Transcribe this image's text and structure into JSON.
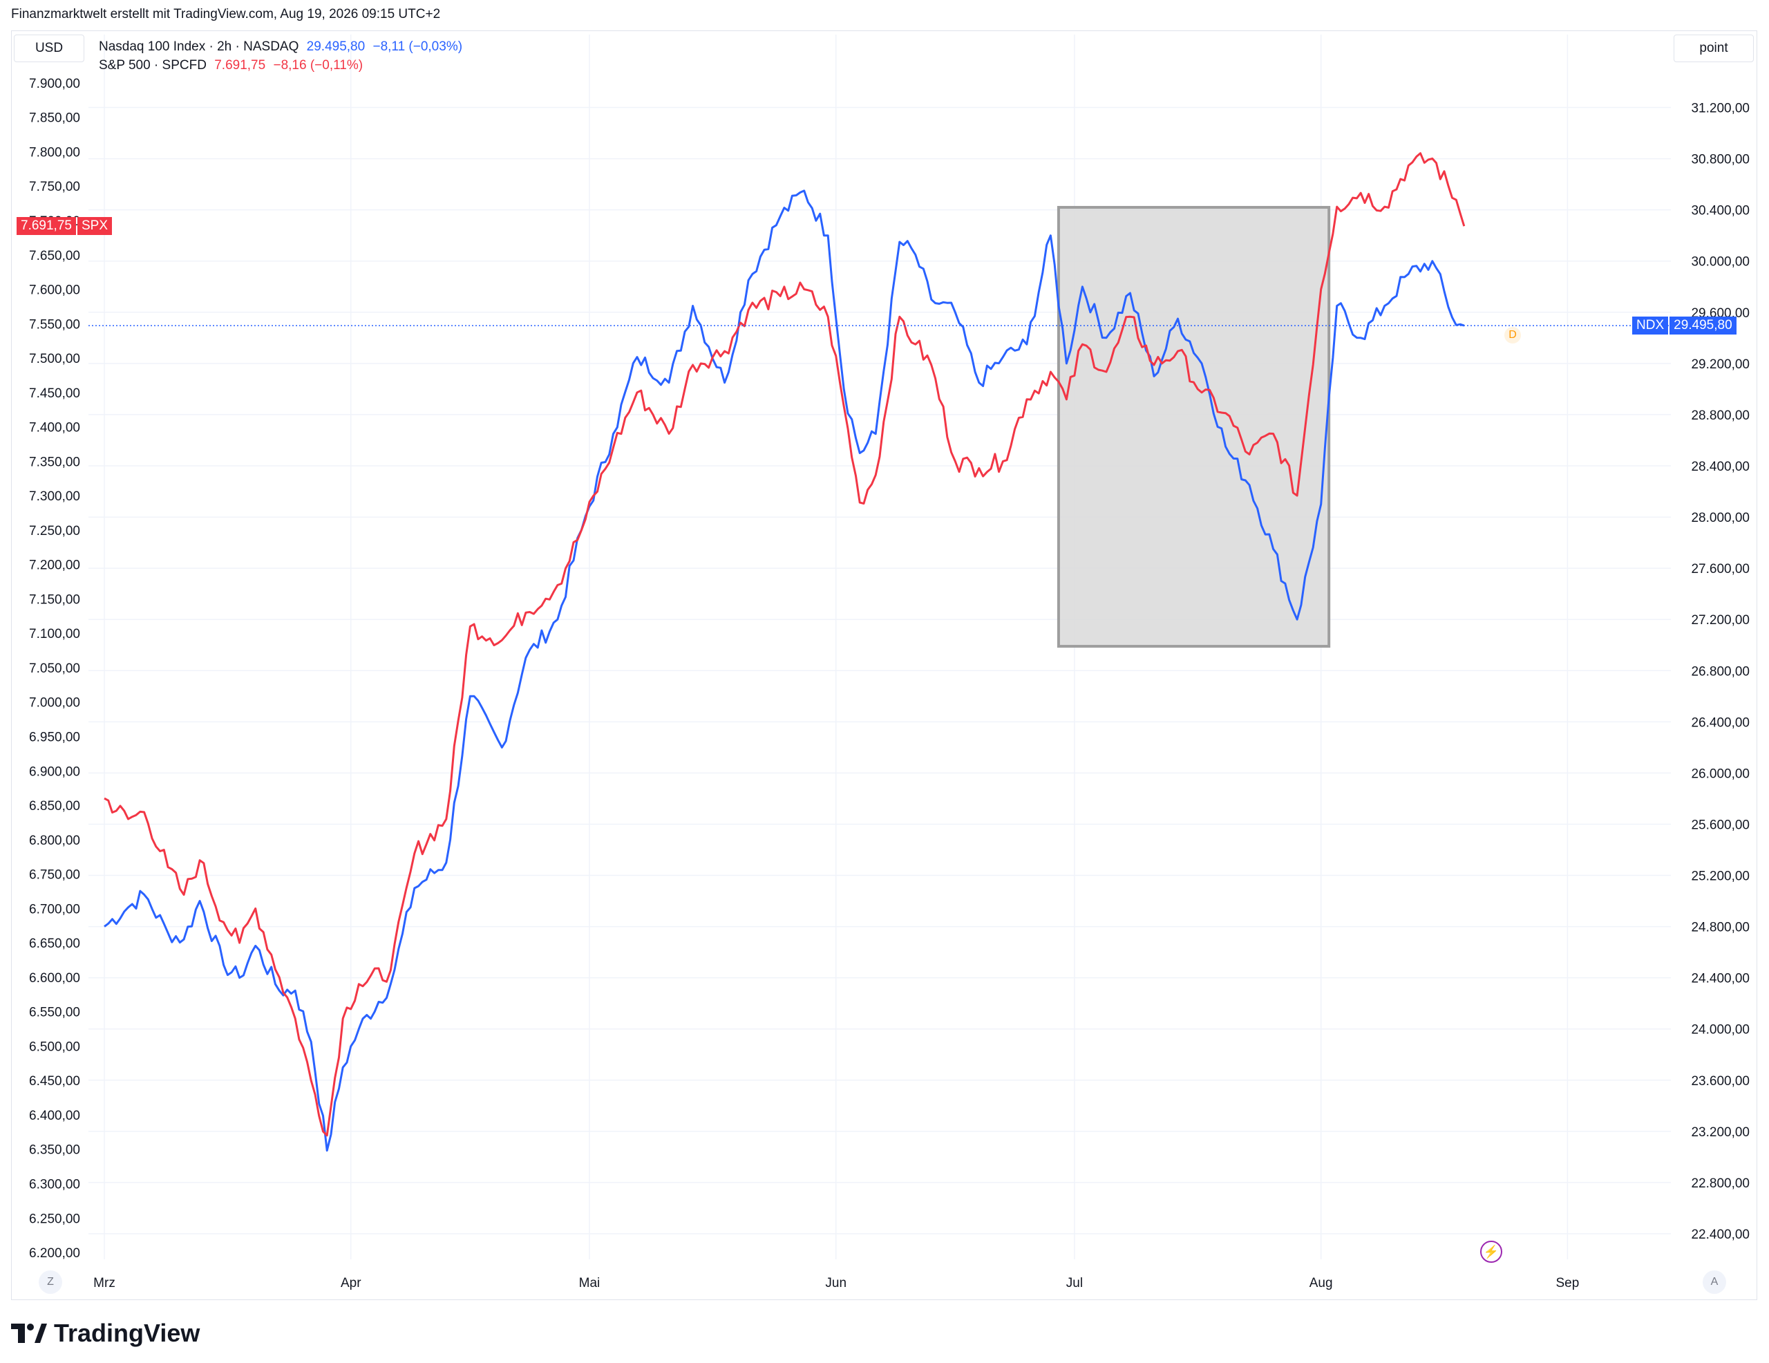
{
  "header": {
    "text": "Finanzmarktwelt erstellt mit TradingView.com, Aug 19, 2026 09:15 UTC+2"
  },
  "toolbar": {
    "currency_label": "USD",
    "unit_label": "point"
  },
  "legend": {
    "ndx": {
      "name": "Nasdaq 100 Index · 2h · NASDAQ",
      "value": "29.495,80",
      "change": "−8,11 (−0,03%)"
    },
    "spx": {
      "name": "S&P 500 · SPCFD",
      "value": "7.691,75",
      "change": "−8,16 (−0,11%)"
    }
  },
  "badges": {
    "spx": {
      "value": "7.691,75",
      "ticker": "SPX"
    },
    "ndx": {
      "value": "29.495,80",
      "ticker": "NDX"
    },
    "dividend_marker": "D"
  },
  "footer": {
    "logo_text": "TradingView",
    "left_button": "Z",
    "right_button": "A"
  },
  "colors": {
    "ndx": "#2962ff",
    "spx": "#f23645",
    "grid": "#f0f3fa",
    "highlight_fill": "#d9d9d9",
    "highlight_border": "#9e9e9e"
  },
  "chart_data": {
    "type": "line",
    "x_labels": [
      "Mrz",
      "Apr",
      "Mai",
      "Jun",
      "Jul",
      "Aug",
      "Sep"
    ],
    "left_axis": {
      "unit": "USD",
      "ylim": [
        6190,
        7920
      ],
      "ticks": [
        "7.900,00",
        "7.850,00",
        "7.800,00",
        "7.750,00",
        "7.700,00",
        "7.650,00",
        "7.600,00",
        "7.550,00",
        "7.500,00",
        "7.450,00",
        "7.400,00",
        "7.350,00",
        "7.300,00",
        "7.250,00",
        "7.200,00",
        "7.150,00",
        "7.100,00",
        "7.050,00",
        "7.000,00",
        "6.950,00",
        "6.900,00",
        "6.850,00",
        "6.800,00",
        "6.750,00",
        "6.700,00",
        "6.650,00",
        "6.600,00",
        "6.550,00",
        "6.500,00",
        "6.450,00",
        "6.400,00",
        "6.350,00",
        "6.300,00",
        "6.250,00",
        "6.200,00"
      ]
    },
    "right_axis": {
      "unit": "point",
      "ylim": [
        22200,
        31500
      ],
      "ticks": [
        "31.200,00",
        "30.800,00",
        "30.400,00",
        "30.000,00",
        "29.600,00",
        "29.200,00",
        "28.800,00",
        "28.400,00",
        "28.000,00",
        "27.600,00",
        "27.200,00",
        "26.800,00",
        "26.400,00",
        "26.000,00",
        "25.600,00",
        "25.200,00",
        "24.800,00",
        "24.400,00",
        "24.000,00",
        "23.600,00",
        "23.200,00",
        "22.800,00",
        "22.400,00"
      ]
    },
    "highlight_box": {
      "x_start": "2026-06-29",
      "x_end": "2026-08-02",
      "y_top": 30420,
      "y_bottom": 26990,
      "axis": "right"
    },
    "series": [
      {
        "name": "Nasdaq 100 Index",
        "axis": "right",
        "x": [
          "2026-03-01",
          "2026-03-04",
          "2026-03-06",
          "2026-03-09",
          "2026-03-11",
          "2026-03-13",
          "2026-03-16",
          "2026-03-18",
          "2026-03-20",
          "2026-03-23",
          "2026-03-25",
          "2026-03-27",
          "2026-03-29",
          "2026-03-31",
          "2026-04-02",
          "2026-04-06",
          "2026-04-09",
          "2026-04-13",
          "2026-04-16",
          "2026-04-20",
          "2026-04-23",
          "2026-04-27",
          "2026-04-30",
          "2026-05-04",
          "2026-05-07",
          "2026-05-11",
          "2026-05-14",
          "2026-05-18",
          "2026-05-21",
          "2026-05-25",
          "2026-05-28",
          "2026-05-31",
          "2026-06-02",
          "2026-06-04",
          "2026-06-06",
          "2026-06-09",
          "2026-06-11",
          "2026-06-13",
          "2026-06-16",
          "2026-06-19",
          "2026-06-22",
          "2026-06-25",
          "2026-06-28",
          "2026-06-30",
          "2026-07-02",
          "2026-07-05",
          "2026-07-08",
          "2026-07-11",
          "2026-07-14",
          "2026-07-17",
          "2026-07-20",
          "2026-07-23",
          "2026-07-26",
          "2026-07-29",
          "2026-08-01",
          "2026-08-03",
          "2026-08-06",
          "2026-08-09",
          "2026-08-12",
          "2026-08-15",
          "2026-08-18",
          "2026-08-19"
        ],
        "y": [
          24800,
          24950,
          25050,
          24750,
          24700,
          25000,
          24500,
          24400,
          24650,
          24300,
          24300,
          23900,
          23050,
          23700,
          24000,
          24350,
          25100,
          25300,
          26600,
          26200,
          26900,
          27200,
          27900,
          28650,
          29250,
          29050,
          29650,
          29050,
          29850,
          30350,
          30550,
          30200,
          29000,
          28500,
          28650,
          30150,
          30050,
          29700,
          29600,
          29050,
          29250,
          29350,
          30200,
          29200,
          29800,
          29400,
          29750,
          29100,
          29550,
          29200,
          28550,
          28250,
          27750,
          27200,
          28100,
          29650,
          29400,
          29650,
          29900,
          30000,
          29500,
          29495.8
        ]
      },
      {
        "name": "S&P 500",
        "axis": "left",
        "x": [
          "2026-03-01",
          "2026-03-04",
          "2026-03-06",
          "2026-03-09",
          "2026-03-11",
          "2026-03-13",
          "2026-03-16",
          "2026-03-18",
          "2026-03-20",
          "2026-03-23",
          "2026-03-25",
          "2026-03-27",
          "2026-03-29",
          "2026-03-31",
          "2026-04-02",
          "2026-04-06",
          "2026-04-09",
          "2026-04-13",
          "2026-04-16",
          "2026-04-20",
          "2026-04-23",
          "2026-04-27",
          "2026-04-30",
          "2026-05-04",
          "2026-05-07",
          "2026-05-11",
          "2026-05-14",
          "2026-05-18",
          "2026-05-21",
          "2026-05-25",
          "2026-05-28",
          "2026-05-31",
          "2026-06-02",
          "2026-06-04",
          "2026-06-06",
          "2026-06-09",
          "2026-06-11",
          "2026-06-13",
          "2026-06-16",
          "2026-06-19",
          "2026-06-22",
          "2026-06-25",
          "2026-06-28",
          "2026-06-30",
          "2026-07-02",
          "2026-07-05",
          "2026-07-08",
          "2026-07-11",
          "2026-07-14",
          "2026-07-17",
          "2026-07-20",
          "2026-07-23",
          "2026-07-26",
          "2026-07-29",
          "2026-08-01",
          "2026-08-03",
          "2026-08-06",
          "2026-08-09",
          "2026-08-12",
          "2026-08-15",
          "2026-08-18",
          "2026-08-19"
        ],
        "y": [
          6860,
          6830,
          6840,
          6760,
          6720,
          6770,
          6680,
          6650,
          6700,
          6600,
          6540,
          6450,
          6370,
          6540,
          6590,
          6610,
          6780,
          6830,
          7110,
          7090,
          7130,
          7170,
          7250,
          7370,
          7450,
          7390,
          7490,
          7510,
          7570,
          7590,
          7600,
          7560,
          7430,
          7290,
          7330,
          7560,
          7520,
          7490,
          7350,
          7340,
          7350,
          7440,
          7480,
          7440,
          7520,
          7480,
          7560,
          7490,
          7510,
          7450,
          7420,
          7360,
          7390,
          7300,
          7600,
          7720,
          7740,
          7720,
          7780,
          7790,
          7730,
          7691.75
        ]
      }
    ]
  }
}
